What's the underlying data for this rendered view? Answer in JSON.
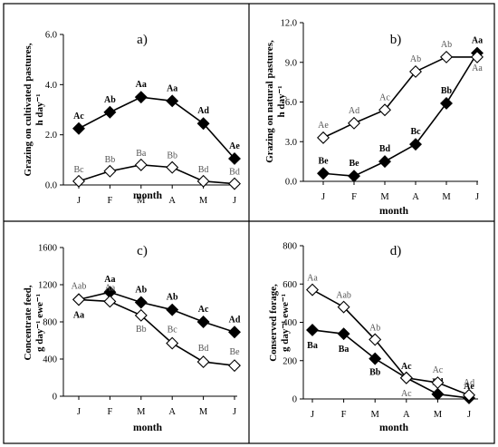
{
  "chart_data": [
    {
      "type": "line",
      "panel": "a)",
      "ylabel": "Grazing on cultivated pastures, h day⁻¹",
      "xlabel": "month",
      "categories": [
        "J",
        "F",
        "M",
        "A",
        "M",
        "J"
      ],
      "ylim": [
        0,
        6
      ],
      "yticks": [
        "0.0",
        "2.0",
        "4.0",
        "6.0"
      ],
      "series": [
        {
          "marker": "filled-diamond",
          "values": [
            2.25,
            2.9,
            3.5,
            3.35,
            2.45,
            1.05
          ],
          "labels": [
            "Ac",
            "Ab",
            "Aa",
            "Aa",
            "Ad",
            "Ae"
          ]
        },
        {
          "marker": "open-diamond",
          "values": [
            0.15,
            0.55,
            0.8,
            0.7,
            0.15,
            0.05
          ],
          "labels": [
            "Bc",
            "Bb",
            "Ba",
            "Bb",
            "Bd",
            "Bd"
          ]
        }
      ]
    },
    {
      "type": "line",
      "panel": "b)",
      "ylabel": "Grazing on natural pastures, h day⁻¹",
      "xlabel": "month",
      "categories": [
        "J",
        "F",
        "M",
        "A",
        "M",
        "J"
      ],
      "ylim": [
        0,
        12
      ],
      "yticks": [
        "0.0",
        "3.0",
        "6.0",
        "9.0",
        "12.0"
      ],
      "series": [
        {
          "marker": "filled-diamond",
          "values": [
            0.6,
            0.4,
            1.5,
            2.8,
            5.9,
            9.7
          ],
          "labels": [
            "Be",
            "Be",
            "Bd",
            "Bc",
            "Bb",
            "Aa"
          ]
        },
        {
          "marker": "open-diamond",
          "values": [
            3.3,
            4.4,
            5.4,
            8.3,
            9.4,
            9.4
          ],
          "labels": [
            "Ae",
            "Ad",
            "Ac",
            "Ab",
            "Ab",
            "Aa"
          ]
        }
      ]
    },
    {
      "type": "line",
      "panel": "c)",
      "ylabel": "Concentrate feed, g day⁻¹ ewe⁻¹",
      "xlabel": "month",
      "categories": [
        "J",
        "F",
        "M",
        "A",
        "M",
        "J"
      ],
      "ylim": [
        0,
        1600
      ],
      "yticks": [
        "0",
        "400",
        "800",
        "1200",
        "1600"
      ],
      "series": [
        {
          "marker": "filled-diamond",
          "values": [
            1040,
            1120,
            1010,
            930,
            800,
            690
          ],
          "labels": [
            "Aa",
            "Aa",
            "Ab",
            "Ab",
            "Ac",
            "Ad"
          ]
        },
        {
          "marker": "open-diamond",
          "values": [
            1040,
            1020,
            870,
            570,
            370,
            330
          ],
          "labels": [
            "Aab",
            "Aa",
            "Bb",
            "Bc",
            "Bd",
            "Be"
          ]
        }
      ]
    },
    {
      "type": "line",
      "panel": "d)",
      "ylabel": "Conserved forage, g day⁻¹ ewe⁻¹",
      "xlabel": "month",
      "categories": [
        "J",
        "F",
        "M",
        "A",
        "M",
        "J"
      ],
      "ylim": [
        0,
        800
      ],
      "yticks": [
        "0",
        "200",
        "400",
        "600",
        "800"
      ],
      "series": [
        {
          "marker": "filled-diamond",
          "values": [
            360,
            340,
            210,
            110,
            25,
            5
          ],
          "labels": [
            "Ba",
            "Ba",
            "Bb",
            "Ac",
            "Bd",
            "Ae"
          ]
        },
        {
          "marker": "open-diamond",
          "values": [
            570,
            480,
            310,
            110,
            85,
            20
          ],
          "labels": [
            "Aa",
            "Aab",
            "Ab",
            "Ac",
            "Ac",
            "Ad"
          ]
        }
      ]
    }
  ]
}
